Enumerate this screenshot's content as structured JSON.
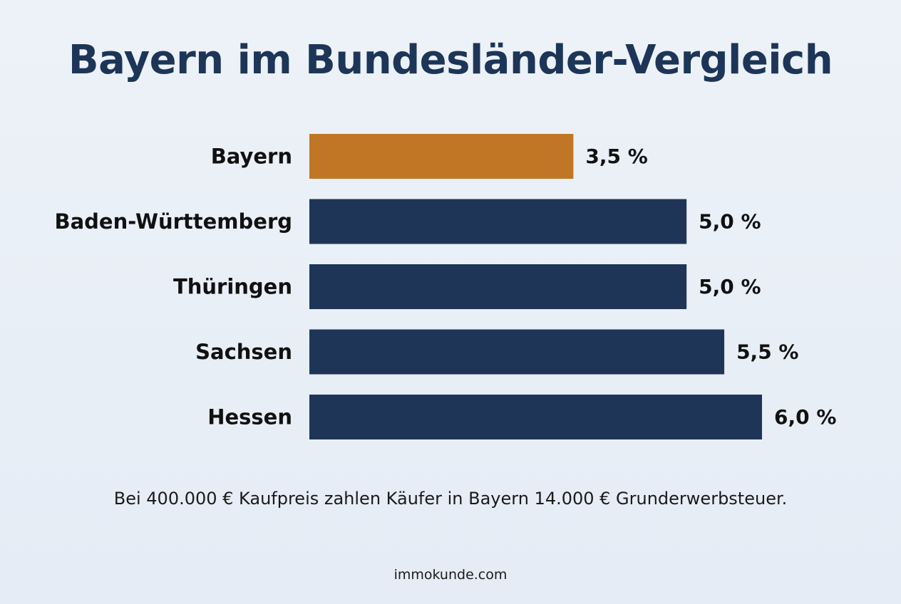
{
  "title": "Bayern im Bundesländer-Vergleich",
  "footnote": "Bei 400.000 € Kaufpreis zahlen Käufer in Bayern 14.000 € Grunderwerbsteuer.",
  "source": "immokunde.com",
  "colors": {
    "highlight": "#c07624",
    "bar": "#1e3557",
    "title": "#1d3557",
    "background": "#e9eff6"
  },
  "chart_data": {
    "type": "bar",
    "orientation": "horizontal",
    "categories": [
      "Bayern",
      "Baden-Württemberg",
      "Thüringen",
      "Sachsen",
      "Hessen"
    ],
    "values": [
      3.5,
      5.0,
      5.0,
      5.5,
      6.0
    ],
    "value_labels": [
      "3,5 %",
      "5,0 %",
      "5,0 %",
      "5,5 %",
      "6,0 %"
    ],
    "highlight_category": "Bayern",
    "xlim": [
      0,
      6.0
    ],
    "grid": false,
    "legend": "none",
    "title": "Bayern im Bundesländer-Vergleich",
    "xlabel": "",
    "ylabel": ""
  }
}
